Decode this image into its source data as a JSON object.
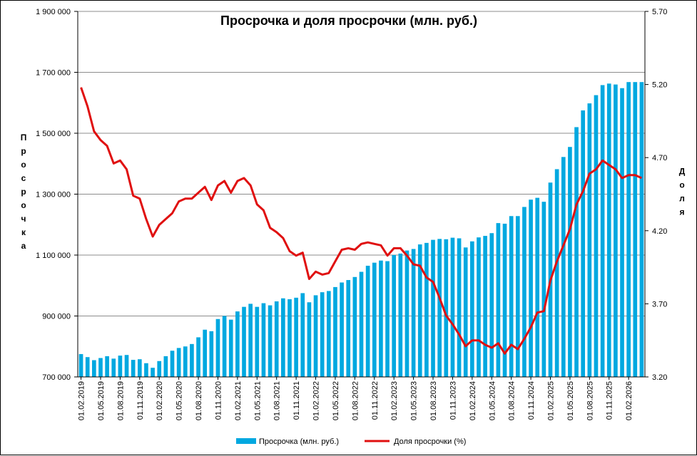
{
  "chart_data": {
    "type": "bar+line",
    "title": "Просрочка и доля просрочки (млн. руб.)",
    "ylabel_left": "Просрочка",
    "ylabel_right": "Доля",
    "y_left_ticks": [
      "700 000",
      "900 000",
      "1 100 000",
      "1 300 000",
      "1 500 000",
      "1 700 000",
      "1 900 000"
    ],
    "y_right_ticks": [
      "3.20",
      "3.70",
      "4.20",
      "4.70",
      "5.20",
      "5.70"
    ],
    "ylim_left": [
      700000,
      1900000
    ],
    "ylim_right": [
      3.2,
      5.7
    ],
    "x_tick_labels": [
      "01.02.2019",
      "01.05.2019",
      "01.08.2019",
      "01.11.2019",
      "01.02.2020",
      "01.05.2020",
      "01.08.2020",
      "01.11.2020",
      "01.02.2021",
      "01.05.2021",
      "01.08.2021",
      "01.11.2021",
      "01.02.2022",
      "01.05.2022",
      "01.08.2022",
      "01.11.2022",
      "01.02.2023",
      "01.05.2023",
      "01.08.2023",
      "01.11.2023",
      "01.02.2024",
      "01.05.2024",
      "01.08.2024",
      "01.11.2024",
      "01.02.2025",
      "01.05.2025",
      "01.08.2025",
      "01.11.2025",
      "01.02.2026"
    ],
    "grid": "horizontal",
    "legend_position": "bottom",
    "series": [
      {
        "name": "Просрочка (млн. руб.)",
        "type": "bar",
        "axis": "left",
        "color": "#00a8e0",
        "values": [
          775000,
          765000,
          755000,
          762000,
          768000,
          760000,
          770000,
          772000,
          756000,
          758000,
          745000,
          730000,
          752000,
          768000,
          786000,
          795000,
          800000,
          808000,
          830000,
          855000,
          850000,
          890000,
          900000,
          888000,
          915000,
          930000,
          940000,
          930000,
          942000,
          935000,
          948000,
          958000,
          955000,
          960000,
          975000,
          945000,
          968000,
          978000,
          982000,
          995000,
          1010000,
          1018000,
          1028000,
          1045000,
          1065000,
          1075000,
          1082000,
          1080000,
          1100000,
          1105000,
          1115000,
          1120000,
          1135000,
          1140000,
          1150000,
          1153000,
          1152000,
          1157000,
          1155000,
          1125000,
          1145000,
          1158000,
          1163000,
          1172000,
          1205000,
          1203000,
          1228000,
          1228000,
          1258000,
          1282000,
          1288000,
          1275000,
          1338000,
          1382000,
          1422000,
          1455000,
          1520000,
          1575000,
          1598000,
          1625000,
          1658000,
          1663000,
          1660000,
          1648000,
          1668000,
          1668000,
          1668000
        ]
      },
      {
        "name": "Доля просрочки (%)",
        "type": "line",
        "axis": "right",
        "color": "#e01010",
        "values": [
          5.18,
          5.05,
          4.88,
          4.82,
          4.78,
          4.66,
          4.68,
          4.62,
          4.44,
          4.42,
          4.28,
          4.16,
          4.24,
          4.28,
          4.32,
          4.4,
          4.42,
          4.42,
          4.46,
          4.5,
          4.41,
          4.51,
          4.54,
          4.46,
          4.54,
          4.56,
          4.51,
          4.38,
          4.34,
          4.22,
          4.19,
          4.15,
          4.06,
          4.03,
          4.05,
          3.87,
          3.92,
          3.9,
          3.91,
          3.99,
          4.07,
          4.08,
          4.07,
          4.11,
          4.12,
          4.11,
          4.1,
          4.03,
          4.08,
          4.08,
          4.03,
          3.97,
          3.96,
          3.88,
          3.85,
          3.74,
          3.62,
          3.56,
          3.49,
          3.41,
          3.45,
          3.45,
          3.42,
          3.4,
          3.43,
          3.36,
          3.42,
          3.39,
          3.46,
          3.54,
          3.64,
          3.65,
          3.86,
          3.99,
          4.1,
          4.21,
          4.38,
          4.47,
          4.59,
          4.62,
          4.68,
          4.65,
          4.62,
          4.56,
          4.58,
          4.58,
          4.56
        ]
      }
    ]
  }
}
